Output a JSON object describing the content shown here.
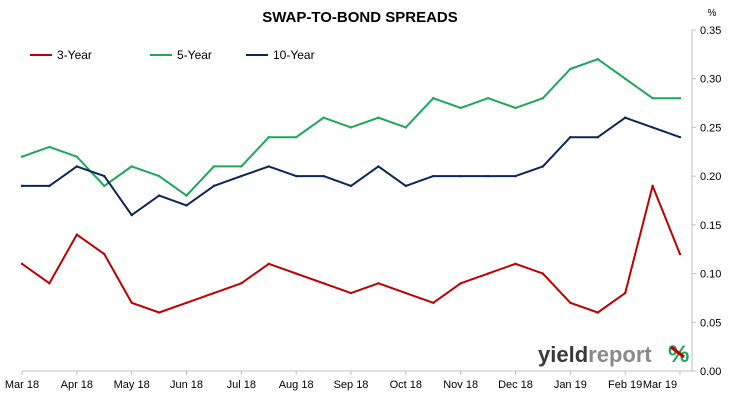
{
  "chart_data": {
    "type": "line",
    "title": "SWAP-TO-BOND SPREADS",
    "y_unit": "%",
    "ylim": [
      0,
      0.35
    ],
    "y_ticks": [
      "0.00",
      "0.05",
      "0.10",
      "0.15",
      "0.20",
      "0.25",
      "0.30",
      "0.35"
    ],
    "y_axis_side": "right",
    "x_tick_labels": [
      "Mar 18",
      "Apr 18",
      "May 18",
      "Jun 18",
      "Jul 18",
      "Aug 18",
      "Sep 18",
      "Oct 18",
      "Nov 18",
      "Dec 18",
      "Jan 19",
      "Feb 19",
      "Mar 19"
    ],
    "x": [
      "Mar 18",
      "mid Mar 18",
      "Apr 18",
      "mid Apr 18",
      "May 18",
      "mid May 18",
      "Jun 18",
      "mid Jun 18",
      "Jul 18",
      "mid Jul 18",
      "Aug 18",
      "mid Aug 18",
      "Sep 18",
      "mid Sep 18",
      "Oct 18",
      "mid Oct 18",
      "Nov 18",
      "mid Nov 18",
      "Dec 18",
      "mid Dec 18",
      "Jan 19",
      "mid Jan 19",
      "Feb 19",
      "mid Feb 19",
      "Mar 19"
    ],
    "grid": false,
    "legend_position": "top-left",
    "series": [
      {
        "name": "3-Year",
        "color": "#c00000",
        "values": [
          0.11,
          0.09,
          0.14,
          0.12,
          0.07,
          0.06,
          0.07,
          0.08,
          0.09,
          0.11,
          0.1,
          0.09,
          0.08,
          0.09,
          0.08,
          0.07,
          0.09,
          0.1,
          0.11,
          0.1,
          0.07,
          0.06,
          0.08,
          0.19,
          0.12
        ]
      },
      {
        "name": "5-Year",
        "color": "#1ca75a",
        "values": [
          0.22,
          0.23,
          0.22,
          0.19,
          0.21,
          0.2,
          0.18,
          0.21,
          0.21,
          0.24,
          0.24,
          0.26,
          0.25,
          0.26,
          0.25,
          0.28,
          0.27,
          0.28,
          0.27,
          0.28,
          0.31,
          0.32,
          0.3,
          0.28,
          0.28
        ]
      },
      {
        "name": "10-Year",
        "color": "#0e2654",
        "values": [
          0.19,
          0.19,
          0.21,
          0.2,
          0.16,
          0.18,
          0.17,
          0.19,
          0.2,
          0.21,
          0.2,
          0.2,
          0.19,
          0.21,
          0.19,
          0.2,
          0.2,
          0.2,
          0.2,
          0.21,
          0.24,
          0.24,
          0.26,
          0.25,
          0.24
        ]
      }
    ]
  },
  "logo": {
    "word_dark": "yield",
    "word_light": "report",
    "symbol": "%"
  }
}
